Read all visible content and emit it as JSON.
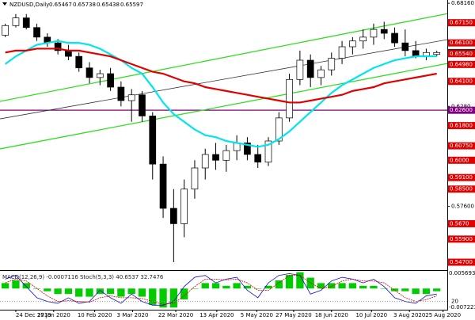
{
  "chart_data": {
    "type": "candlestick",
    "title": "NZDUSD,Daily",
    "header_values": [
      0.65467,
      0.65738,
      0.65438,
      0.65597
    ],
    "up_color": "#ffffff",
    "down_color": "#000000",
    "xlim": [
      -0.5,
      42
    ],
    "ylim": [
      0.5433,
      0.6833
    ],
    "candles": [
      [
        0.665,
        0.671,
        0.664,
        0.67
      ],
      [
        0.67,
        0.676,
        0.669,
        0.674
      ],
      [
        0.674,
        0.676,
        0.668,
        0.669
      ],
      [
        0.669,
        0.671,
        0.662,
        0.664
      ],
      [
        0.664,
        0.666,
        0.659,
        0.661
      ],
      [
        0.661,
        0.663,
        0.655,
        0.657
      ],
      [
        0.657,
        0.66,
        0.652,
        0.654
      ],
      [
        0.654,
        0.656,
        0.646,
        0.648
      ],
      [
        0.648,
        0.651,
        0.64,
        0.643
      ],
      [
        0.643,
        0.647,
        0.639,
        0.645
      ],
      [
        0.645,
        0.648,
        0.636,
        0.638
      ],
      [
        0.638,
        0.641,
        0.628,
        0.631
      ],
      [
        0.631,
        0.637,
        0.62,
        0.634
      ],
      [
        0.634,
        0.636,
        0.62,
        0.623
      ],
      [
        0.623,
        0.625,
        0.59,
        0.598
      ],
      [
        0.598,
        0.602,
        0.57,
        0.575
      ],
      [
        0.575,
        0.585,
        0.547,
        0.567
      ],
      [
        0.567,
        0.59,
        0.56,
        0.585
      ],
      [
        0.585,
        0.6,
        0.58,
        0.596
      ],
      [
        0.596,
        0.606,
        0.59,
        0.603
      ],
      [
        0.603,
        0.609,
        0.595,
        0.6
      ],
      [
        0.6,
        0.608,
        0.594,
        0.605
      ],
      [
        0.605,
        0.613,
        0.6,
        0.609
      ],
      [
        0.609,
        0.612,
        0.6,
        0.603
      ],
      [
        0.603,
        0.608,
        0.596,
        0.599
      ],
      [
        0.599,
        0.612,
        0.597,
        0.61
      ],
      [
        0.61,
        0.625,
        0.608,
        0.622
      ],
      [
        0.622,
        0.645,
        0.62,
        0.642
      ],
      [
        0.642,
        0.657,
        0.639,
        0.652
      ],
      [
        0.652,
        0.655,
        0.638,
        0.643
      ],
      [
        0.643,
        0.649,
        0.639,
        0.647
      ],
      [
        0.647,
        0.656,
        0.644,
        0.653
      ],
      [
        0.653,
        0.662,
        0.65,
        0.659
      ],
      [
        0.659,
        0.664,
        0.655,
        0.662
      ],
      [
        0.662,
        0.668,
        0.658,
        0.664
      ],
      [
        0.664,
        0.671,
        0.66,
        0.668
      ],
      [
        0.668,
        0.672,
        0.663,
        0.666
      ],
      [
        0.666,
        0.669,
        0.659,
        0.661
      ],
      [
        0.661,
        0.668,
        0.654,
        0.657
      ],
      [
        0.657,
        0.662,
        0.653,
        0.654
      ],
      [
        0.654,
        0.658,
        0.652,
        0.656
      ],
      [
        0.655,
        0.657,
        0.654,
        0.656
      ]
    ],
    "moving_averages": [
      {
        "color": "#00e5ee",
        "values": [
          0.65,
          0.654,
          0.657,
          0.66,
          0.661,
          0.662,
          0.661,
          0.661,
          0.66,
          0.658,
          0.655,
          0.652,
          0.648,
          0.645,
          0.638,
          0.63,
          0.624,
          0.62,
          0.616,
          0.613,
          0.612,
          0.61,
          0.609,
          0.608,
          0.607,
          0.608,
          0.611,
          0.615,
          0.62,
          0.625,
          0.63,
          0.635,
          0.639,
          0.642,
          0.645,
          0.648,
          0.65,
          0.652,
          0.653,
          0.654,
          0.654,
          0.654
        ]
      },
      {
        "color": "#e00000",
        "values": [
          0.656,
          0.657,
          0.657,
          0.658,
          0.658,
          0.658,
          0.657,
          0.657,
          0.656,
          0.655,
          0.654,
          0.652,
          0.65,
          0.648,
          0.646,
          0.645,
          0.643,
          0.641,
          0.64,
          0.638,
          0.637,
          0.636,
          0.635,
          0.634,
          0.633,
          0.632,
          0.631,
          0.63,
          0.63,
          0.631,
          0.632,
          0.633,
          0.634,
          0.636,
          0.637,
          0.638,
          0.64,
          0.641,
          0.642,
          0.643,
          0.644,
          0.645
        ]
      }
    ],
    "trendlines": [
      {
        "color": "#33dd22",
        "x": [
          -0.5,
          42
        ],
        "values": [
          0.6306,
          0.6762
        ]
      },
      {
        "color": "#33dd22",
        "x": [
          -0.5,
          42
        ],
        "values": [
          0.6059,
          0.6503
        ]
      },
      {
        "color": "#333333",
        "x": [
          -0.5,
          42
        ],
        "values": [
          0.6215,
          0.6627
        ]
      }
    ],
    "yticks": [
      {
        "value": 0.6816,
        "label": "0.68160"
      },
      {
        "value": 0.628,
        "label": "0.6280"
      },
      {
        "value": 0.576,
        "label": "0.57600"
      },
      {
        "value": 0.5465,
        "label": "0.54650"
      }
    ],
    "price_levels": [
      {
        "value": 0.6715,
        "label": "0.67150",
        "color": "#e00000"
      },
      {
        "value": 0.661,
        "label": "0.66100",
        "color": "#e00000"
      },
      {
        "value": 0.65597,
        "label": "0.65597",
        "color": "#222222"
      },
      {
        "value": 0.6554,
        "label": "0.65540",
        "color": "#e00000"
      },
      {
        "value": 0.6498,
        "label": "0.64980",
        "color": "#e00000"
      },
      {
        "value": 0.641,
        "label": "0.64100",
        "color": "#e00000"
      },
      {
        "value": 0.626,
        "label": "0.62600",
        "color": "#800080"
      },
      {
        "value": 0.618,
        "label": "0.61800",
        "color": "#e00000"
      },
      {
        "value": 0.6075,
        "label": "0.60750",
        "color": "#e00000"
      },
      {
        "value": 0.6,
        "label": "0.6000",
        "color": "#e00000"
      },
      {
        "value": 0.591,
        "label": "0.59100",
        "color": "#e00000"
      },
      {
        "value": 0.585,
        "label": "0.58500",
        "color": "#e00000"
      },
      {
        "value": 0.567,
        "label": "0.5670",
        "color": "#e00000"
      },
      {
        "value": 0.559,
        "label": "0.55900",
        "color": "#e00000"
      },
      {
        "value": 0.547,
        "label": "0.54700",
        "color": "#e00000"
      }
    ],
    "x_labels": [
      {
        "value": 1,
        "label": "24 Dec 2019"
      },
      {
        "value": 4.6,
        "label": "17 Jan 2020"
      },
      {
        "value": 8.5,
        "label": "10 Feb 2020"
      },
      {
        "value": 12.1,
        "label": "3 Mar 2020"
      },
      {
        "value": 16.2,
        "label": "22 Mar 2020"
      },
      {
        "value": 20.1,
        "label": "13 Apr 2020"
      },
      {
        "value": 23.9,
        "label": "5 May 2020"
      },
      {
        "value": 27.4,
        "label": "27 May 2020"
      },
      {
        "value": 31,
        "label": "18 Jun 2020"
      },
      {
        "value": 34.8,
        "label": "10 Jul 2020"
      },
      {
        "value": 38.4,
        "label": "3 Aug 2020"
      },
      {
        "value": 41.6,
        "label": "25 Aug 2020"
      }
    ],
    "indicator": {
      "label": "MACD(12,26,9) -0.0007116  Stoch(5,3,3) 40.6537 32.7476",
      "ylim": [
        -0.0075,
        0.0062
      ],
      "yticks": [
        0.005693,
        -0.007223
      ],
      "y2lim": [
        0,
        100
      ],
      "y2ticks": [
        20
      ],
      "histogram_color": "#00cc00",
      "histogram": [
        0.002,
        0.003,
        0.002,
        0.0,
        -0.001,
        -0.002,
        -0.002,
        -0.003,
        -0.003,
        -0.002,
        -0.002,
        -0.003,
        -0.002,
        -0.003,
        -0.006,
        -0.007,
        -0.007,
        -0.004,
        0.0,
        0.002,
        0.002,
        0.001,
        0.002,
        0.001,
        0.0,
        0.001,
        0.003,
        0.005,
        0.006,
        0.004,
        0.002,
        0.002,
        0.002,
        0.002,
        0.001,
        0.001,
        0.0,
        -0.001,
        -0.001,
        -0.002,
        -0.002,
        -0.001
      ],
      "series": [
        {
          "color": "#1010d0",
          "axis": "y2",
          "values": [
            80,
            90,
            60,
            30,
            20,
            15,
            30,
            15,
            20,
            50,
            30,
            15,
            40,
            20,
            10,
            10,
            20,
            60,
            85,
            90,
            70,
            80,
            85,
            50,
            30,
            70,
            90,
            95,
            90,
            40,
            50,
            75,
            85,
            80,
            70,
            80,
            60,
            30,
            20,
            15,
            35,
            40
          ]
        },
        {
          "color": "#e00000",
          "axis": "y2",
          "values": [
            70,
            80,
            75,
            55,
            35,
            20,
            22,
            20,
            18,
            30,
            35,
            30,
            30,
            28,
            20,
            12,
            15,
            35,
            60,
            80,
            80,
            78,
            80,
            70,
            50,
            50,
            70,
            90,
            90,
            70,
            55,
            60,
            75,
            80,
            75,
            75,
            70,
            50,
            30,
            20,
            25,
            35
          ]
        }
      ]
    }
  }
}
